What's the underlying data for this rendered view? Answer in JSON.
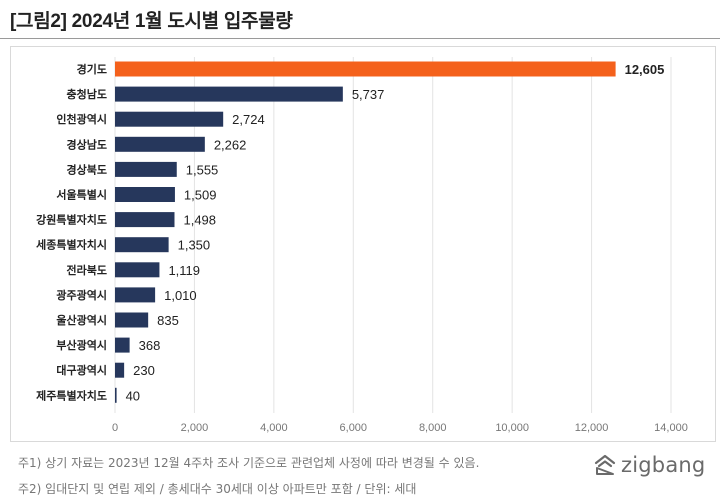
{
  "title": "[그림2]  2024년 1월 도시별 입주물량",
  "notes": [
    "주1) 상기 자료는 2023년 12월 4주차 조사 기준으로 관련업체 사정에 따라 변경될 수 있음.",
    "주2) 임대단지 및 연립 제외 / 총세대수 30세대 이상 아파트만 포함 / 단위: 세대"
  ],
  "brand": {
    "name": "zigbang",
    "icon": "zigbang-logo-icon"
  },
  "colors": {
    "highlight": "#f4611c",
    "bar": "#26375c",
    "grid": "#e3e3e3"
  },
  "chart_data": {
    "type": "bar",
    "orientation": "horizontal",
    "categories": [
      "경기도",
      "충청남도",
      "인천광역시",
      "경상남도",
      "경상북도",
      "서울특별시",
      "강원특별자치도",
      "세종특별자치시",
      "전라북도",
      "광주광역시",
      "울산광역시",
      "부산광역시",
      "대구광역시",
      "제주특별자치도"
    ],
    "values": [
      12605,
      5737,
      2724,
      2262,
      1555,
      1509,
      1498,
      1350,
      1119,
      1010,
      835,
      368,
      230,
      40
    ],
    "value_labels": [
      "12,605",
      "5,737",
      "2,724",
      "2,262",
      "1,555",
      "1,509",
      "1,498",
      "1,350",
      "1,119",
      "1,010",
      "835",
      "368",
      "230",
      "40"
    ],
    "highlight_index": 0,
    "xlim": [
      0,
      14000
    ],
    "xticks": [
      0,
      2000,
      4000,
      6000,
      8000,
      10000,
      12000,
      14000
    ],
    "xtick_labels": [
      "0",
      "2,000",
      "4,000",
      "6,000",
      "8,000",
      "10,000",
      "12,000",
      "14,000"
    ],
    "grid": true
  }
}
